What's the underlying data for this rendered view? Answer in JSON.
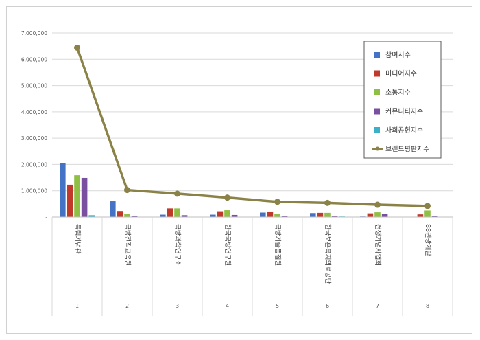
{
  "chart_data": {
    "type": "bar",
    "categories": [
      "독립기념관",
      "국방전직교육원",
      "국방과학연구소",
      "한국국방연구원",
      "국방기술품질원",
      "한국보훈복지의료공단",
      "전쟁기념사업회",
      "88관광개발"
    ],
    "category_index": [
      "1",
      "2",
      "3",
      "4",
      "5",
      "6",
      "7",
      "8"
    ],
    "series": [
      {
        "name": "참여지수",
        "color": "#4472c4",
        "values": [
          2060000,
          600000,
          90000,
          90000,
          170000,
          150000,
          20000,
          0
        ]
      },
      {
        "name": "미디어지수",
        "color": "#c0392b",
        "values": [
          1230000,
          230000,
          330000,
          220000,
          210000,
          160000,
          140000,
          100000
        ]
      },
      {
        "name": "소통지수",
        "color": "#8fc043",
        "values": [
          1590000,
          120000,
          330000,
          260000,
          130000,
          160000,
          180000,
          250000
        ]
      },
      {
        "name": "커뮤니티지수",
        "color": "#7a4fa0",
        "values": [
          1490000,
          30000,
          70000,
          80000,
          40000,
          30000,
          110000,
          50000
        ]
      },
      {
        "name": "사회공헌지수",
        "color": "#3bb0c9",
        "values": [
          70000,
          0,
          0,
          0,
          0,
          20000,
          0,
          0
        ]
      }
    ],
    "line_series": {
      "name": "브랜드평판지수",
      "color": "#8b8248",
      "values": [
        6440000,
        1030000,
        890000,
        740000,
        580000,
        540000,
        470000,
        420000
      ]
    },
    "ylim": [
      0,
      7000000
    ],
    "yticks": [
      0,
      1000000,
      2000000,
      3000000,
      4000000,
      5000000,
      6000000,
      7000000
    ],
    "ytick_labels": [
      "-",
      "1,000,000",
      "2,000,000",
      "3,000,000",
      "4,000,000",
      "5,000,000",
      "6,000,000",
      "7,000,000"
    ],
    "grid": true,
    "legend_position": "top-right"
  }
}
